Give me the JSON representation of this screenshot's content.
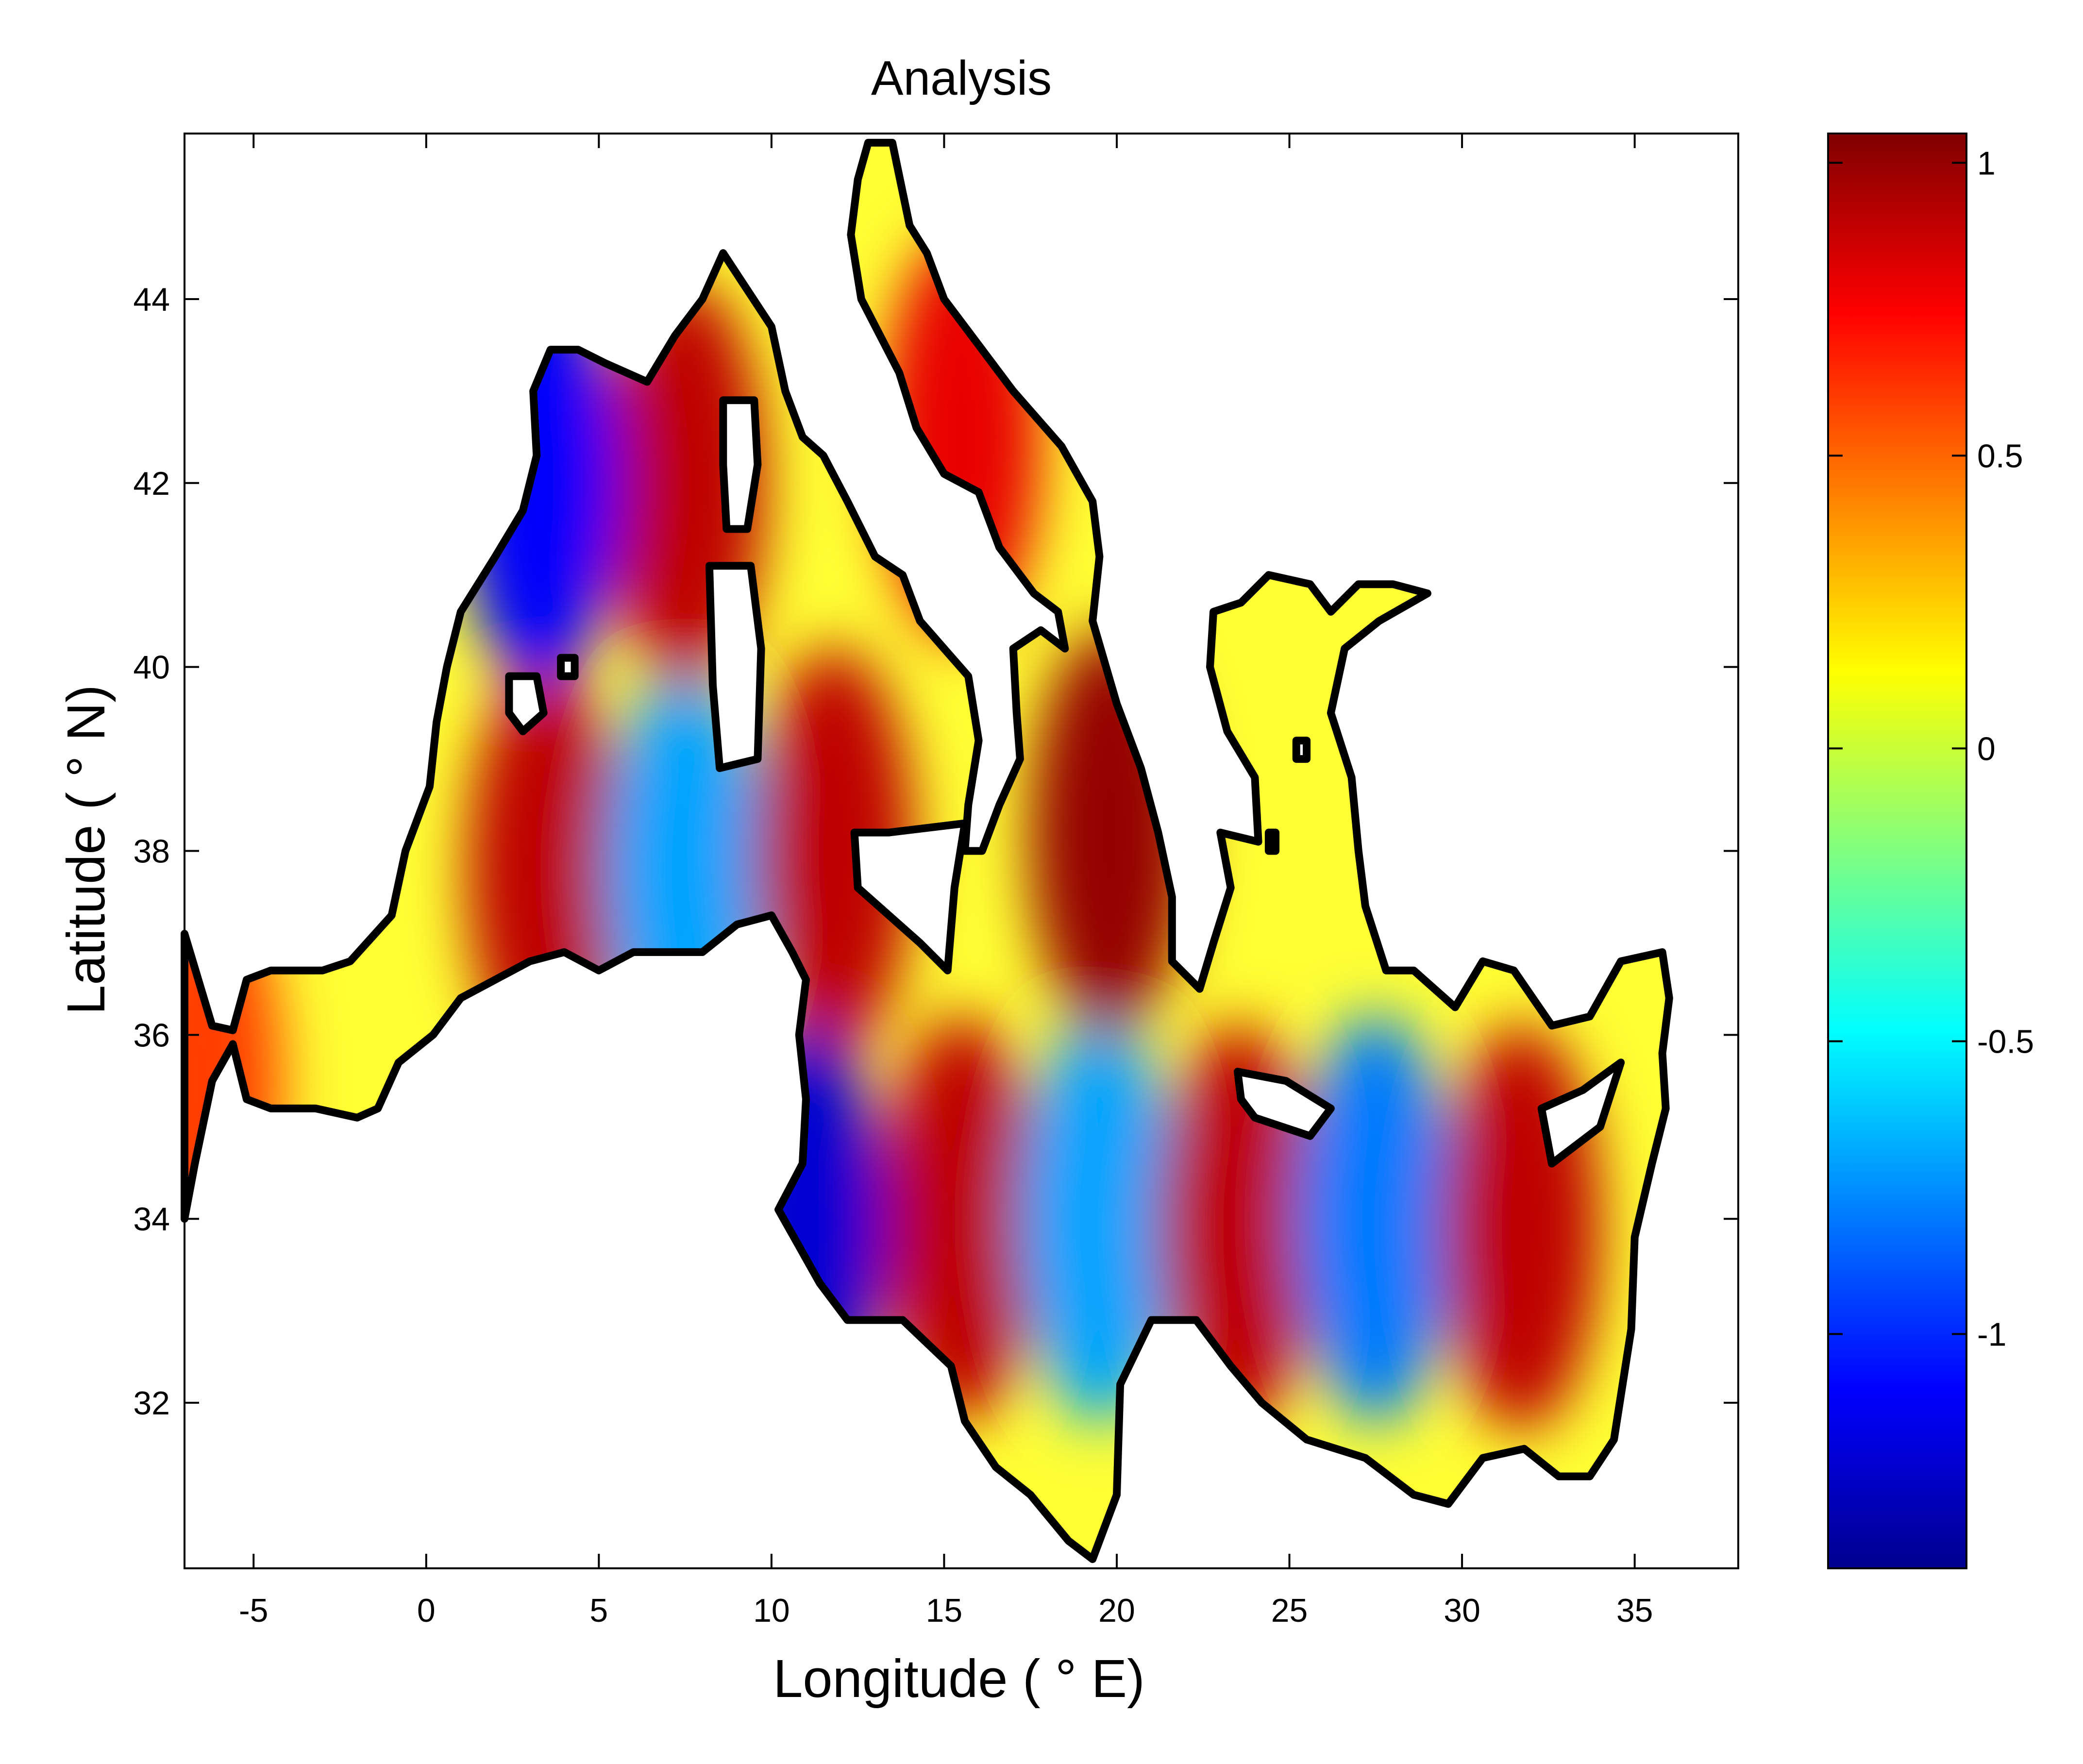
{
  "chart_data": {
    "type": "heatmap",
    "title": "Analysis",
    "xlabel": "Longitude ( ° E)",
    "ylabel": "Latitude ( ° N)",
    "xlim": [
      -7,
      38
    ],
    "ylim": [
      30.2,
      45.8
    ],
    "x_ticks": [
      {
        "value": -5,
        "label": "-5"
      },
      {
        "value": 0,
        "label": "0"
      },
      {
        "value": 5,
        "label": "5"
      },
      {
        "value": 10,
        "label": "10"
      },
      {
        "value": 15,
        "label": "15"
      },
      {
        "value": 20,
        "label": "20"
      },
      {
        "value": 25,
        "label": "25"
      },
      {
        "value": 30,
        "label": "30"
      },
      {
        "value": 35,
        "label": "35"
      }
    ],
    "y_ticks": [
      {
        "value": 32,
        "label": "32"
      },
      {
        "value": 34,
        "label": "34"
      },
      {
        "value": 36,
        "label": "36"
      },
      {
        "value": 38,
        "label": "38"
      },
      {
        "value": 40,
        "label": "40"
      },
      {
        "value": 42,
        "label": "42"
      },
      {
        "value": 44,
        "label": "44"
      }
    ],
    "colorbar": {
      "range": [
        -1.4,
        1.05
      ],
      "colormap": "jet",
      "ticks": [
        {
          "value": 1,
          "label": "1"
        },
        {
          "value": 0.5,
          "label": "0.5"
        },
        {
          "value": 0,
          "label": "0"
        },
        {
          "value": -0.5,
          "label": "-0.5"
        },
        {
          "value": -1,
          "label": "-1"
        }
      ]
    },
    "field_extrema": [
      {
        "lon": 3.5,
        "lat": 37.8,
        "value": 0.9
      },
      {
        "lon": 7.5,
        "lat": 37.8,
        "value": -0.7
      },
      {
        "lon": 7.5,
        "lat": 42.0,
        "value": 0.9
      },
      {
        "lon": 3.3,
        "lat": 42.0,
        "value": -1.1
      },
      {
        "lon": 11.8,
        "lat": 38.0,
        "value": 0.9
      },
      {
        "lon": 15.5,
        "lat": 34.0,
        "value": 0.9
      },
      {
        "lon": 19.5,
        "lat": 34.0,
        "value": -0.7
      },
      {
        "lon": 19.8,
        "lat": 38.2,
        "value": 1.0
      },
      {
        "lon": 23.5,
        "lat": 33.9,
        "value": 0.9
      },
      {
        "lon": 27.5,
        "lat": 34.0,
        "value": -0.8
      },
      {
        "lon": 31.7,
        "lat": 33.9,
        "value": 0.9
      },
      {
        "lon": 11.0,
        "lat": 33.9,
        "value": -1.2
      },
      {
        "lon": 15.5,
        "lat": 42.5,
        "value": 0.8
      },
      {
        "lon": -6.5,
        "lat": 35.5,
        "value": 0.6
      }
    ]
  }
}
